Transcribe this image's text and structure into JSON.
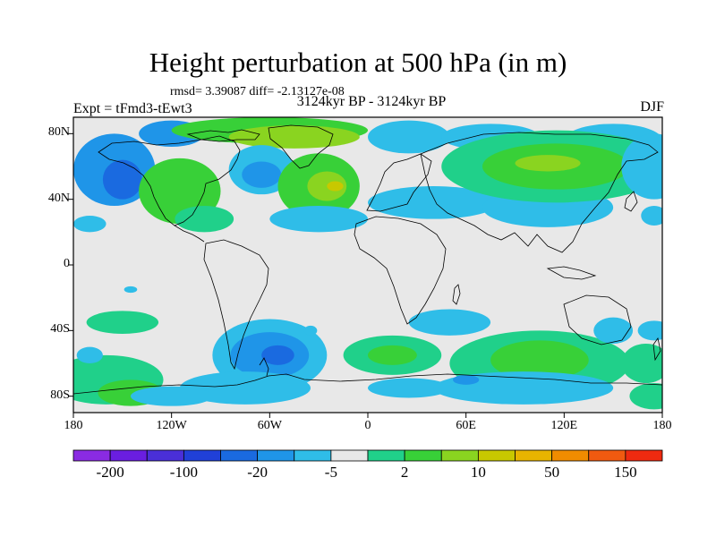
{
  "title": "Height perturbation at 500 hPa (in m)",
  "stats": "rmsd= 3.39087 diff= -2.13127e-08",
  "expt": "Expt = tFmd3-tEwt3",
  "period": "3124kyr BP - 3124kyr BP",
  "season": "DJF",
  "map": {
    "projection": "cylindrical-equidistant",
    "lon_range": [
      -180,
      180
    ],
    "lat_range": [
      -90,
      90
    ],
    "background_color": "#e8e8e8"
  },
  "lat_ticks": [
    {
      "value": 80,
      "label": "80N"
    },
    {
      "value": 40,
      "label": "40N"
    },
    {
      "value": 0,
      "label": "0"
    },
    {
      "value": -40,
      "label": "40S"
    },
    {
      "value": -80,
      "label": "80S"
    }
  ],
  "lon_ticks": [
    {
      "value": -180,
      "label": "180"
    },
    {
      "value": -120,
      "label": "120W"
    },
    {
      "value": -60,
      "label": "60W"
    },
    {
      "value": 0,
      "label": "0"
    },
    {
      "value": 60,
      "label": "60E"
    },
    {
      "value": 120,
      "label": "120E"
    },
    {
      "value": 180,
      "label": "180"
    }
  ],
  "colorbar": {
    "colors": [
      "#8a2be2",
      "#6a1ee0",
      "#4a2fd8",
      "#2040d8",
      "#1a6ae0",
      "#1f95e8",
      "#2fbde8",
      "#e8e8e8",
      "#20d08a",
      "#38d038",
      "#8ad420",
      "#c8c800",
      "#e8b400",
      "#f08c00",
      "#f05a10",
      "#ee2a10"
    ],
    "labels": [
      {
        "after_index": 0,
        "text": "-200"
      },
      {
        "after_index": 2,
        "text": "-100"
      },
      {
        "after_index": 4,
        "text": "-20"
      },
      {
        "after_index": 6,
        "text": "-5"
      },
      {
        "after_index": 8,
        "text": "2"
      },
      {
        "after_index": 10,
        "text": "10"
      },
      {
        "after_index": 12,
        "text": "50"
      },
      {
        "after_index": 14,
        "text": "150"
      }
    ]
  },
  "anomalies": [
    {
      "lon": -155,
      "lat": 58,
      "rx": 25,
      "ry": 22,
      "level": 5
    },
    {
      "lon": -150,
      "lat": 52,
      "rx": 12,
      "ry": 12,
      "level": 4
    },
    {
      "lon": -120,
      "lat": 80,
      "rx": 20,
      "ry": 8,
      "level": 5
    },
    {
      "lon": -60,
      "lat": 82,
      "rx": 60,
      "ry": 8,
      "level": 9
    },
    {
      "lon": -45,
      "lat": 78,
      "rx": 40,
      "ry": 7,
      "level": 10
    },
    {
      "lon": -115,
      "lat": 45,
      "rx": 25,
      "ry": 20,
      "level": 9
    },
    {
      "lon": -100,
      "lat": 28,
      "rx": 18,
      "ry": 8,
      "level": 8
    },
    {
      "lon": -65,
      "lat": 58,
      "rx": 20,
      "ry": 15,
      "level": 6
    },
    {
      "lon": -65,
      "lat": 55,
      "rx": 12,
      "ry": 8,
      "level": 5
    },
    {
      "lon": -30,
      "lat": 48,
      "rx": 25,
      "ry": 20,
      "level": 9
    },
    {
      "lon": -25,
      "lat": 48,
      "rx": 12,
      "ry": 9,
      "level": 10
    },
    {
      "lon": -20,
      "lat": 48,
      "rx": 5,
      "ry": 3,
      "level": 11
    },
    {
      "lon": -30,
      "lat": 28,
      "rx": 30,
      "ry": 8,
      "level": 6
    },
    {
      "lon": 25,
      "lat": 78,
      "rx": 25,
      "ry": 10,
      "level": 6
    },
    {
      "lon": 75,
      "lat": 78,
      "rx": 30,
      "ry": 8,
      "level": 6
    },
    {
      "lon": 150,
      "lat": 76,
      "rx": 30,
      "ry": 10,
      "level": 6
    },
    {
      "lon": 40,
      "lat": 38,
      "rx": 40,
      "ry": 10,
      "level": 6
    },
    {
      "lon": 110,
      "lat": 35,
      "rx": 40,
      "ry": 12,
      "level": 6
    },
    {
      "lon": 115,
      "lat": 60,
      "rx": 70,
      "ry": 22,
      "level": 8
    },
    {
      "lon": 115,
      "lat": 60,
      "rx": 45,
      "ry": 14,
      "level": 9
    },
    {
      "lon": 110,
      "lat": 62,
      "rx": 20,
      "ry": 5,
      "level": 10
    },
    {
      "lon": 175,
      "lat": 60,
      "rx": 20,
      "ry": 20,
      "level": 6
    },
    {
      "lon": 175,
      "lat": 30,
      "rx": 8,
      "ry": 6,
      "level": 6
    },
    {
      "lon": -170,
      "lat": 25,
      "rx": 10,
      "ry": 5,
      "level": 6
    },
    {
      "lon": -145,
      "lat": -15,
      "rx": 4,
      "ry": 2,
      "level": 6
    },
    {
      "lon": -150,
      "lat": -35,
      "rx": 22,
      "ry": 7,
      "level": 8
    },
    {
      "lon": -160,
      "lat": -70,
      "rx": 35,
      "ry": 15,
      "level": 8
    },
    {
      "lon": -145,
      "lat": -78,
      "rx": 20,
      "ry": 8,
      "level": 9
    },
    {
      "lon": -170,
      "lat": -55,
      "rx": 8,
      "ry": 5,
      "level": 6
    },
    {
      "lon": -60,
      "lat": -55,
      "rx": 35,
      "ry": 22,
      "level": 6
    },
    {
      "lon": -60,
      "lat": -55,
      "rx": 24,
      "ry": 14,
      "level": 5
    },
    {
      "lon": -55,
      "lat": -55,
      "rx": 10,
      "ry": 6,
      "level": 4
    },
    {
      "lon": -75,
      "lat": -75,
      "rx": 40,
      "ry": 10,
      "level": 6
    },
    {
      "lon": -120,
      "lat": -80,
      "rx": 25,
      "ry": 6,
      "level": 6
    },
    {
      "lon": 15,
      "lat": -55,
      "rx": 30,
      "ry": 12,
      "level": 8
    },
    {
      "lon": 15,
      "lat": -55,
      "rx": 15,
      "ry": 6,
      "level": 9
    },
    {
      "lon": 50,
      "lat": -35,
      "rx": 25,
      "ry": 8,
      "level": 6
    },
    {
      "lon": 25,
      "lat": -75,
      "rx": 25,
      "ry": 6,
      "level": 6
    },
    {
      "lon": 105,
      "lat": -60,
      "rx": 55,
      "ry": 20,
      "level": 8
    },
    {
      "lon": 105,
      "lat": -58,
      "rx": 30,
      "ry": 12,
      "level": 9
    },
    {
      "lon": 95,
      "lat": -75,
      "rx": 55,
      "ry": 10,
      "level": 6
    },
    {
      "lon": 150,
      "lat": -40,
      "rx": 12,
      "ry": 8,
      "level": 6
    },
    {
      "lon": 170,
      "lat": -60,
      "rx": 15,
      "ry": 12,
      "level": 8
    },
    {
      "lon": 175,
      "lat": -80,
      "rx": 15,
      "ry": 8,
      "level": 8
    },
    {
      "lon": 175,
      "lat": -40,
      "rx": 10,
      "ry": 6,
      "level": 6
    },
    {
      "lon": -35,
      "lat": -40,
      "rx": 4,
      "ry": 3,
      "level": 6
    },
    {
      "lon": 60,
      "lat": -70,
      "rx": 8,
      "ry": 3,
      "level": 5
    }
  ]
}
